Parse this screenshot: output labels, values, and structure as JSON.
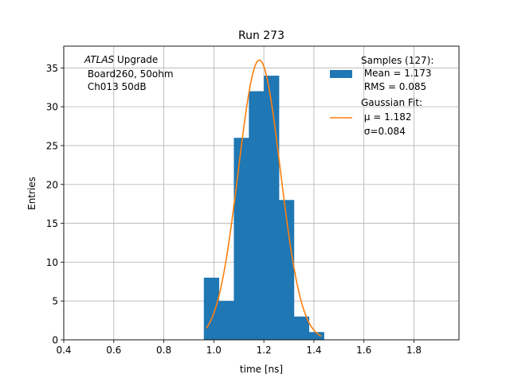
{
  "chart_data": {
    "type": "bar",
    "title": "Run 273",
    "xlabel": "time [ns]",
    "ylabel": "Entries",
    "xlim": [
      0.4,
      1.98
    ],
    "ylim": [
      0,
      37.8
    ],
    "xticks": [
      0.4,
      0.6,
      0.8,
      1.0,
      1.2,
      1.4,
      1.6,
      1.8
    ],
    "xtick_labels": [
      "0.4",
      "0.6",
      "0.8",
      "1.0",
      "1.2",
      "1.4",
      "1.6",
      "1.8"
    ],
    "yticks": [
      0,
      5,
      10,
      15,
      20,
      25,
      30,
      35
    ],
    "ytick_labels": [
      "0",
      "5",
      "10",
      "15",
      "20",
      "25",
      "30",
      "35"
    ],
    "grid": true,
    "legend_position": "top-right",
    "colors": {
      "histogram": "#1f77b4",
      "fit": "#ff7f0e"
    },
    "histogram": {
      "name": "Samples (127):\n Mean = 1.173\n RMS = 0.085",
      "bin_edges": [
        0.96,
        1.02,
        1.08,
        1.14,
        1.2,
        1.26,
        1.32,
        1.38,
        1.44
      ],
      "counts": [
        8,
        5,
        26,
        32,
        34,
        18,
        3,
        1
      ]
    },
    "fit": {
      "name": "Gaussian Fit:\n $\\mu$ = 1.182\n $\\sigma$=0.084",
      "mu": 1.182,
      "sigma": 0.084,
      "amplitude": 36.0,
      "x_range": [
        0.97,
        1.43
      ]
    },
    "annotation": {
      "line1_italic": "ATLAS",
      "line1_rest": " Upgrade",
      "line2": " Board260, 50ohm",
      "line3": " Ch013 50dB"
    },
    "legend": {
      "samples_lines": [
        "Samples (127):",
        " Mean = 1.173",
        " RMS = 0.085"
      ],
      "fit_lines": [
        "Gaussian Fit:",
        " μ = 1.182",
        " σ=0.084"
      ]
    }
  }
}
